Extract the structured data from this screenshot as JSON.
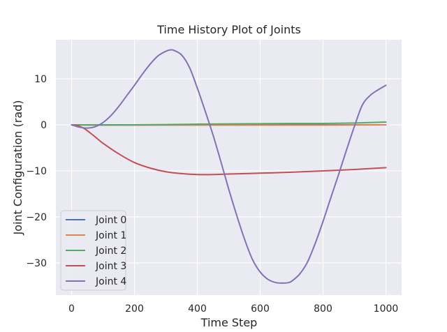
{
  "chart_data": {
    "type": "line",
    "title": "Time History Plot of Joints",
    "xlabel": "Time Step",
    "ylabel": "Joint Configuration (rad)",
    "xlim": [
      -50,
      1050
    ],
    "ylim": [
      -37,
      18.5
    ],
    "xticks": [
      0,
      200,
      400,
      600,
      800,
      1000
    ],
    "xtick_labels": [
      "0",
      "200",
      "400",
      "600",
      "800",
      "1000"
    ],
    "yticks": [
      10,
      0,
      -10,
      -20,
      -30
    ],
    "ytick_labels": [
      "10",
      "0",
      "−10",
      "−20",
      "−30"
    ],
    "grid": true,
    "legend_position": "lower-left",
    "background_color": "#eaeaf2",
    "grid_color": "#ffffff",
    "series": [
      {
        "name": "Joint 0",
        "color": "#4c72b0",
        "x": [
          0,
          200,
          400,
          600,
          800,
          1000
        ],
        "y": [
          0,
          0,
          0,
          0,
          0,
          0
        ]
      },
      {
        "name": "Joint 1",
        "color": "#dd8452",
        "x": [
          0,
          200,
          400,
          600,
          800,
          1000
        ],
        "y": [
          0,
          -0.05,
          -0.05,
          -0.05,
          -0.05,
          0
        ]
      },
      {
        "name": "Joint 2",
        "color": "#55a868",
        "x": [
          0,
          100,
          200,
          300,
          400,
          500,
          600,
          700,
          800,
          900,
          1000
        ],
        "y": [
          0,
          -0.05,
          0,
          0.05,
          0.15,
          0.2,
          0.25,
          0.3,
          0.3,
          0.4,
          0.6
        ]
      },
      {
        "name": "Joint 3",
        "color": "#c44e52",
        "x": [
          0,
          20,
          40,
          60,
          80,
          100,
          150,
          200,
          250,
          300,
          350,
          400,
          450,
          500,
          600,
          700,
          800,
          900,
          1000
        ],
        "y": [
          0,
          -0.2,
          -0.8,
          -1.8,
          -2.9,
          -4.0,
          -6.3,
          -8.2,
          -9.4,
          -10.2,
          -10.6,
          -10.8,
          -10.8,
          -10.7,
          -10.5,
          -10.3,
          -10.0,
          -9.7,
          -9.3
        ]
      },
      {
        "name": "Joint 4",
        "color": "#8172b3",
        "x": [
          0,
          25,
          50,
          75,
          100,
          125,
          150,
          175,
          200,
          225,
          250,
          275,
          300,
          315,
          325,
          350,
          375,
          400,
          425,
          450,
          475,
          500,
          525,
          550,
          575,
          600,
          625,
          650,
          675,
          690,
          700,
          725,
          750,
          775,
          800,
          825,
          850,
          875,
          900,
          925,
          950,
          975,
          1000
        ],
        "y": [
          0,
          -0.5,
          -0.7,
          -0.4,
          0.5,
          2.0,
          4.0,
          6.3,
          8.6,
          11.0,
          13.2,
          15.0,
          16.0,
          16.3,
          16.2,
          15.2,
          12.5,
          8.0,
          3.0,
          -2.2,
          -8.0,
          -14.0,
          -19.6,
          -24.8,
          -29.2,
          -32.0,
          -33.6,
          -34.3,
          -34.4,
          -34.3,
          -34.0,
          -32.5,
          -29.9,
          -25.8,
          -21.0,
          -15.8,
          -10.7,
          -5.4,
          -0.3,
          4.3,
          6.4,
          7.6,
          8.6
        ]
      }
    ]
  }
}
